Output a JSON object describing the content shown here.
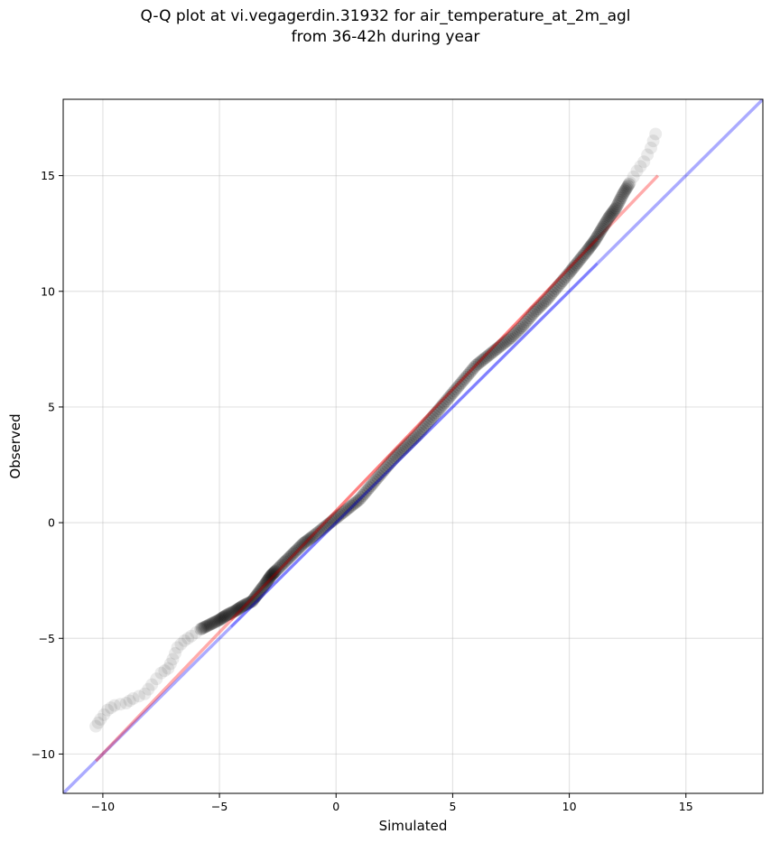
{
  "chart_data": {
    "type": "scatter",
    "title": "Q-Q plot at vi.vegagerdin.31932 for air_temperature_at_2m_agl",
    "subtitle": "from 36-42h during year",
    "xlabel": "Simulated",
    "ylabel": "Observed",
    "xlim": [
      -11.7,
      18.3
    ],
    "ylim": [
      -11.7,
      18.3
    ],
    "xticks": [
      -10,
      -5,
      0,
      5,
      10,
      15
    ],
    "yticks": [
      -10,
      -5,
      0,
      5,
      10,
      15
    ],
    "xtick_labels": [
      "−10",
      "−5",
      "0",
      "5",
      "10",
      "15"
    ],
    "ytick_labels": [
      "−10",
      "−5",
      "0",
      "5",
      "10",
      "15"
    ],
    "grid": true,
    "series": [
      {
        "type": "scatter",
        "color": "#000000",
        "x": [
          -10.3,
          -10.1,
          -9.8,
          -9.5,
          -9.0,
          -8.7,
          -8.2,
          -7.9,
          -7.5,
          -7.2,
          -7.0,
          -6.8,
          -6.5,
          -6.2,
          -5.8,
          -5.4,
          -5.0,
          -4.7,
          -4.3,
          -4.0,
          -3.6,
          -3.3,
          -3.0,
          -2.8,
          -2.6,
          -2.2,
          -1.8,
          -1.4,
          -1.0,
          -0.5,
          0.0,
          0.5,
          1.0,
          1.5,
          2.0,
          2.5,
          3.0,
          3.5,
          4.0,
          4.5,
          5.0,
          5.5,
          6.0,
          6.5,
          7.0,
          7.5,
          8.0,
          8.5,
          9.0,
          9.5,
          10.0,
          10.4,
          10.8,
          11.1,
          11.4,
          11.7,
          12.0,
          12.3,
          12.6,
          12.9,
          13.2,
          13.5,
          13.7
        ],
        "y": [
          -8.8,
          -8.5,
          -8.1,
          -7.9,
          -7.8,
          -7.6,
          -7.4,
          -7.0,
          -6.5,
          -6.3,
          -5.9,
          -5.4,
          -5.1,
          -4.9,
          -4.6,
          -4.4,
          -4.2,
          -4.0,
          -3.8,
          -3.6,
          -3.4,
          -3.0,
          -2.6,
          -2.3,
          -2.1,
          -1.7,
          -1.3,
          -0.9,
          -0.6,
          -0.2,
          0.2,
          0.6,
          1.0,
          1.6,
          2.2,
          2.8,
          3.3,
          3.8,
          4.4,
          5.0,
          5.6,
          6.2,
          6.8,
          7.2,
          7.6,
          8.0,
          8.5,
          9.1,
          9.6,
          10.2,
          10.8,
          11.3,
          11.8,
          12.2,
          12.7,
          13.2,
          13.6,
          14.2,
          14.7,
          15.2,
          15.6,
          16.2,
          16.8
        ]
      },
      {
        "type": "line",
        "color": "#ff0000",
        "x": [
          -10.3,
          13.8
        ],
        "y": [
          -10.3,
          15.0
        ]
      },
      {
        "type": "line",
        "color": "#0000ff",
        "x": [
          -11.7,
          18.3
        ],
        "y": [
          -11.7,
          18.3
        ]
      }
    ]
  }
}
